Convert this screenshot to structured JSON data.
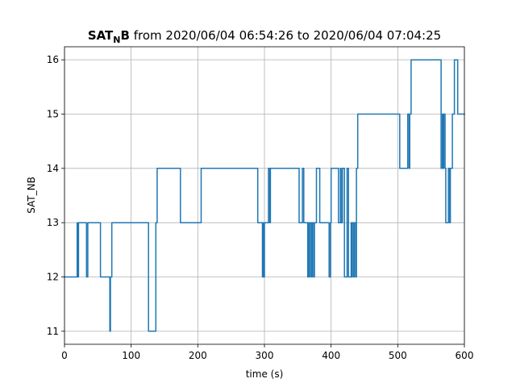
{
  "chart_data": {
    "type": "line",
    "style": "step",
    "title": {
      "bold_main": "SAT",
      "bold_subscript": "N",
      "bold_suffix": "B",
      "rest": " from 2020/06/04 06:54:26 to 2020/06/04 07:04:25"
    },
    "xlabel": "time (s)",
    "ylabel": "SAT_NB",
    "xlim": [
      0,
      600
    ],
    "ylim": [
      10.76,
      16.24
    ],
    "xticks": [
      0,
      100,
      200,
      300,
      400,
      500,
      600
    ],
    "yticks": [
      11,
      12,
      13,
      14,
      15,
      16
    ],
    "grid": true,
    "colors": {
      "series": "#1f77b4"
    },
    "series": [
      {
        "x": [
          0,
          19,
          20,
          21,
          22,
          33,
          35,
          36,
          54,
          68,
          69,
          71,
          126,
          128,
          137,
          139,
          141,
          174,
          205,
          206,
          290,
          297,
          298,
          299,
          300,
          306,
          308,
          309,
          352,
          357,
          359,
          365,
          366,
          368,
          369,
          371,
          372,
          374,
          375,
          377,
          378,
          380,
          383,
          388,
          397,
          399,
          400,
          403,
          411,
          414,
          415,
          417,
          420,
          424,
          426,
          430,
          431,
          432,
          434,
          435,
          437,
          438,
          440,
          442,
          503,
          507,
          515,
          517,
          518,
          520,
          522,
          565,
          567,
          568,
          569,
          571,
          572,
          576,
          578,
          579,
          580,
          582,
          585,
          588,
          590,
          598
        ],
        "y": [
          12,
          13,
          12,
          13,
          13,
          12,
          13,
          13,
          12,
          11,
          12,
          13,
          11,
          11,
          13,
          14,
          14,
          13,
          14,
          14,
          13,
          12,
          13,
          12,
          13,
          14,
          13,
          14,
          13,
          14,
          13,
          12,
          13,
          12,
          13,
          12,
          13,
          12,
          13,
          13,
          14,
          14,
          13,
          13,
          12,
          13,
          14,
          14,
          13,
          14,
          13,
          14,
          12,
          14,
          12,
          13,
          12,
          13,
          12,
          13,
          12,
          14,
          15,
          15,
          14,
          14,
          15,
          14,
          15,
          16,
          16,
          14,
          15,
          14,
          15,
          14,
          13,
          14,
          13,
          14,
          14,
          15,
          16,
          16,
          15,
          15
        ]
      }
    ]
  }
}
